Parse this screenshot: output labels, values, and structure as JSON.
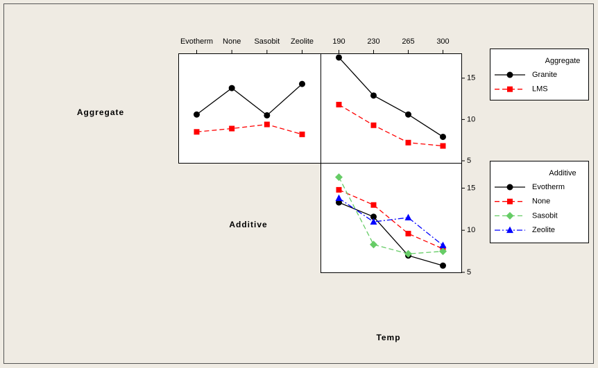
{
  "labels": {
    "row_1": "Aggregate",
    "row_2": "Additive",
    "x_label": "Temp"
  },
  "chart_data": [
    {
      "type": "line",
      "categories": [
        "Evotherm",
        "None",
        "Sasobit",
        "Zeolite"
      ],
      "ylim": [
        4.75,
        18
      ],
      "series": [
        {
          "color": "#000000",
          "marker": "circle",
          "dash": "solid",
          "values": [
            10.6,
            13.8,
            10.5,
            14.3
          ]
        },
        {
          "color": "#ff0000",
          "marker": "square",
          "dash": "dashed",
          "values": [
            8.5,
            8.9,
            9.4,
            8.2
          ]
        }
      ]
    },
    {
      "type": "line",
      "categories": [
        190,
        230,
        265,
        300
      ],
      "ylim": [
        4.75,
        18
      ],
      "yticks": [
        5,
        10,
        15
      ],
      "legend_title": "Aggregate",
      "series": [
        {
          "name": "Granite",
          "color": "#000000",
          "marker": "circle",
          "dash": "solid",
          "values": [
            17.5,
            12.9,
            10.6,
            7.9
          ]
        },
        {
          "name": "LMS",
          "color": "#ff0000",
          "marker": "square",
          "dash": "dashed",
          "values": [
            11.8,
            9.3,
            7.2,
            6.8
          ]
        }
      ]
    },
    {
      "type": "line",
      "ylim": [
        5,
        18
      ],
      "yticks": [
        5,
        10,
        15
      ],
      "legend_title": "Additive",
      "series": [
        {
          "name": "Evotherm",
          "color": "#000000",
          "marker": "circle",
          "dash": "solid",
          "values": [
            13.3,
            11.6,
            7.0,
            5.8
          ]
        },
        {
          "name": "None",
          "color": "#ff0000",
          "marker": "square",
          "dash": "dashed",
          "values": [
            14.8,
            13.0,
            9.6,
            7.8
          ]
        },
        {
          "name": "Sasobit",
          "color": "#66cc66",
          "marker": "diamond",
          "dash": "dashed",
          "values": [
            16.3,
            8.3,
            7.2,
            7.5
          ]
        },
        {
          "name": "Zeolite",
          "color": "#0000ff",
          "marker": "triangle",
          "dash": "dashdot",
          "values": [
            13.8,
            11.0,
            11.5,
            8.2
          ]
        }
      ]
    }
  ]
}
